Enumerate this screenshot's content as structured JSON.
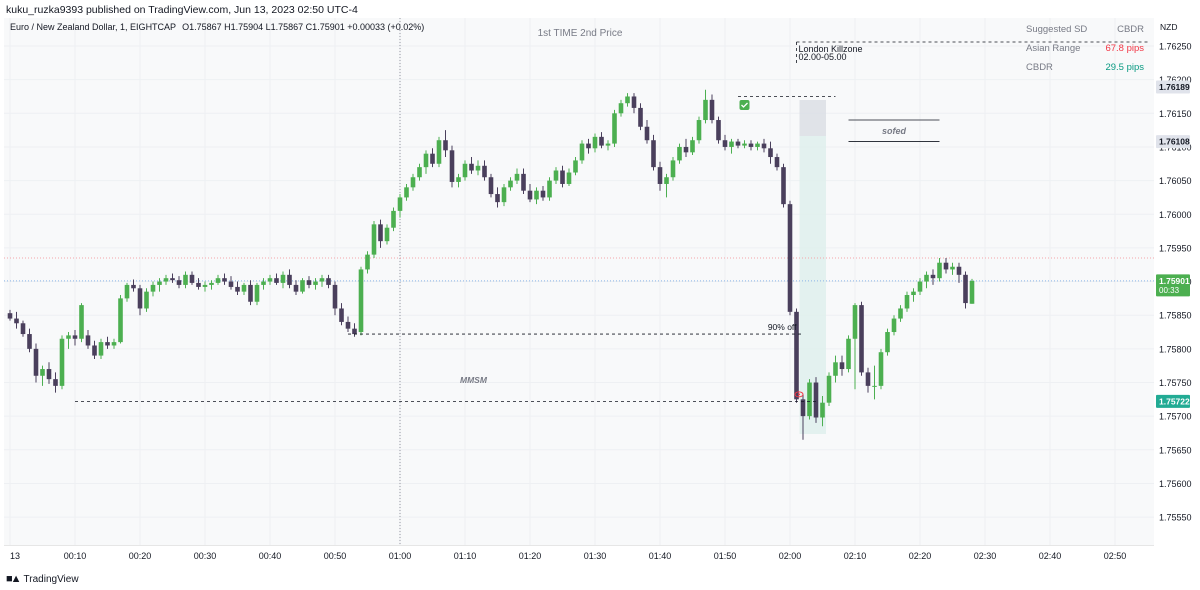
{
  "header": {
    "publisher": "kuku_ruzka9393 published on TradingView.com, Jun 13, 2023 02:50 UTC-4"
  },
  "legend": {
    "symbol": "Euro / New Zealand Dollar, 1, EIGHTCAP",
    "ohlc": "O1.75867  H1.75904  L1.75867  C1.75901  +0.00033 (+0.02%)"
  },
  "info_table": {
    "header_left": "Suggested SD",
    "header_right": "CBDR",
    "rows": [
      {
        "label": "Asian Range",
        "value": "67.8 pips",
        "color": "#f23645"
      },
      {
        "label": "CBDR",
        "value": "29.5 pips",
        "color": "#089981"
      }
    ]
  },
  "footer": {
    "brand": "TradingView"
  },
  "colors": {
    "up": "#4caf50",
    "down": "#4a3f5c",
    "accent_green": "#22ab94",
    "grid": "#eef0f3"
  },
  "chart_data": {
    "type": "candlestick",
    "symbol": "EURNZD",
    "interval": "1",
    "currency": "NZD",
    "ylim": [
      1.755,
      1.7625
    ],
    "y_ticks": [
      "1.76250",
      "1.76200",
      "1.76150",
      "1.76100",
      "1.76050",
      "1.76000",
      "1.75950",
      "1.75900",
      "1.75850",
      "1.75800",
      "1.75750",
      "1.75700",
      "1.75650",
      "1.75600",
      "1.75550"
    ],
    "x_ticks": [
      "13",
      "00:10",
      "00:20",
      "00:30",
      "00:40",
      "00:50",
      "01:00",
      "01:10",
      "01:20",
      "01:30",
      "01:40",
      "01:50",
      "02:00",
      "02:10",
      "02:20",
      "02:30",
      "02:40",
      "02:50"
    ],
    "price_labels": [
      {
        "value": 1.76189,
        "text": "1.76189",
        "bg": "#e0e3eb",
        "fg": "#131722"
      },
      {
        "value": 1.76108,
        "text": "1.76108",
        "bg": "#e0e3eb",
        "fg": "#131722"
      },
      {
        "value": 1.75901,
        "text": "1.75901",
        "sub": "00:33",
        "bg": "#4caf50",
        "fg": "#ffffff"
      },
      {
        "value": 1.75722,
        "text": "1.75722",
        "bg": "#22ab94",
        "fg": "#ffffff"
      }
    ],
    "annotations": {
      "title": "1st TIME 2nd Price",
      "killzone_name": "London Killzone",
      "killzone_time": "02.00-05.00",
      "sofed": "sofed",
      "off": "90% off",
      "mmsm": "MMSM"
    },
    "candles": [
      [
        1.75853,
        1.75858,
        1.75842,
        1.75845
      ],
      [
        1.75845,
        1.75855,
        1.7583,
        1.75838
      ],
      [
        1.75838,
        1.75842,
        1.75818,
        1.75822
      ],
      [
        1.75822,
        1.7583,
        1.75795,
        1.758
      ],
      [
        1.758,
        1.75808,
        1.7575,
        1.7576
      ],
      [
        1.7576,
        1.75775,
        1.75745,
        1.7577
      ],
      [
        1.7577,
        1.7578,
        1.75748,
        1.75755
      ],
      [
        1.75755,
        1.75765,
        1.75735,
        1.75745
      ],
      [
        1.75745,
        1.7582,
        1.7574,
        1.75815
      ],
      [
        1.75815,
        1.75825,
        1.758,
        1.7582
      ],
      [
        1.7582,
        1.75828,
        1.75805,
        1.75815
      ],
      [
        1.75815,
        1.75868,
        1.7581,
        1.75865
      ],
      [
        1.7582,
        1.75828,
        1.758,
        1.75805
      ],
      [
        1.75805,
        1.75812,
        1.75785,
        1.7579
      ],
      [
        1.7579,
        1.75815,
        1.75785,
        1.7581
      ],
      [
        1.7581,
        1.75818,
        1.758,
        1.75805
      ],
      [
        1.75805,
        1.75815,
        1.758,
        1.7581
      ],
      [
        1.7581,
        1.7588,
        1.75808,
        1.75875
      ],
      [
        1.75875,
        1.75898,
        1.7587,
        1.75895
      ],
      [
        1.75895,
        1.75903,
        1.75885,
        1.7589
      ],
      [
        1.7589,
        1.75895,
        1.7585,
        1.7586
      ],
      [
        1.7586,
        1.7589,
        1.75855,
        1.75885
      ],
      [
        1.75885,
        1.759,
        1.75878,
        1.75895
      ],
      [
        1.75895,
        1.75905,
        1.75885,
        1.759
      ],
      [
        1.759,
        1.7591,
        1.75895,
        1.75905
      ],
      [
        1.75905,
        1.75912,
        1.75898,
        1.75902
      ],
      [
        1.75902,
        1.75908,
        1.7589,
        1.75895
      ],
      [
        1.75895,
        1.75915,
        1.7589,
        1.7591
      ],
      [
        1.7591,
        1.75915,
        1.75895,
        1.75898
      ],
      [
        1.75898,
        1.75905,
        1.75888,
        1.75892
      ],
      [
        1.75892,
        1.759,
        1.75885,
        1.75895
      ],
      [
        1.75895,
        1.75902,
        1.75888,
        1.75898
      ],
      [
        1.75898,
        1.7591,
        1.75895,
        1.75905
      ],
      [
        1.75905,
        1.75912,
        1.75895,
        1.759
      ],
      [
        1.759,
        1.75908,
        1.75888,
        1.75892
      ],
      [
        1.75892,
        1.759,
        1.7588,
        1.75885
      ],
      [
        1.75885,
        1.75898,
        1.7588,
        1.75895
      ],
      [
        1.75895,
        1.75902,
        1.75865,
        1.7587
      ],
      [
        1.7587,
        1.75898,
        1.75865,
        1.75895
      ],
      [
        1.75895,
        1.75905,
        1.75888,
        1.759
      ],
      [
        1.759,
        1.7591,
        1.75895,
        1.75905
      ],
      [
        1.75905,
        1.75912,
        1.75895,
        1.75898
      ],
      [
        1.75898,
        1.75915,
        1.7589,
        1.7591
      ],
      [
        1.7591,
        1.75918,
        1.7589,
        1.75895
      ],
      [
        1.75895,
        1.75902,
        1.7588,
        1.75885
      ],
      [
        1.75885,
        1.75905,
        1.75882,
        1.75902
      ],
      [
        1.75902,
        1.75908,
        1.7589,
        1.75895
      ],
      [
        1.75895,
        1.75905,
        1.75888,
        1.759
      ],
      [
        1.759,
        1.7591,
        1.75892,
        1.75905
      ],
      [
        1.75905,
        1.7591,
        1.7589,
        1.75895
      ],
      [
        1.75895,
        1.759,
        1.7585,
        1.7586
      ],
      [
        1.7586,
        1.75868,
        1.75835,
        1.7584
      ],
      [
        1.7584,
        1.75848,
        1.75825,
        1.7583
      ],
      [
        1.7583,
        1.75838,
        1.75818,
        1.75822
      ],
      [
        1.75825,
        1.75922,
        1.7582,
        1.75918
      ],
      [
        1.75918,
        1.75945,
        1.75912,
        1.7594
      ],
      [
        1.7594,
        1.7599,
        1.75935,
        1.75985
      ],
      [
        1.75985,
        1.75992,
        1.7595,
        1.7596
      ],
      [
        1.7596,
        1.75985,
        1.75955,
        1.7598
      ],
      [
        1.7598,
        1.7601,
        1.75975,
        1.76005
      ],
      [
        1.76005,
        1.7603,
        1.75995,
        1.76025
      ],
      [
        1.76025,
        1.76045,
        1.7602,
        1.7604
      ],
      [
        1.7604,
        1.7606,
        1.76035,
        1.76055
      ],
      [
        1.76055,
        1.76075,
        1.7605,
        1.7607
      ],
      [
        1.7607,
        1.76095,
        1.7606,
        1.7609
      ],
      [
        1.7609,
        1.76098,
        1.7607,
        1.76075
      ],
      [
        1.76075,
        1.76115,
        1.7607,
        1.7611
      ],
      [
        1.7611,
        1.76125,
        1.76085,
        1.76095
      ],
      [
        1.76095,
        1.76102,
        1.7604,
        1.76048
      ],
      [
        1.76048,
        1.7606,
        1.7604,
        1.76055
      ],
      [
        1.76055,
        1.7608,
        1.7605,
        1.76075
      ],
      [
        1.76075,
        1.76085,
        1.7606,
        1.76065
      ],
      [
        1.76065,
        1.7608,
        1.76058,
        1.76072
      ],
      [
        1.76072,
        1.7608,
        1.7605,
        1.76055
      ],
      [
        1.76055,
        1.7606,
        1.76025,
        1.7603
      ],
      [
        1.7603,
        1.7604,
        1.7601,
        1.76018
      ],
      [
        1.76018,
        1.76045,
        1.76012,
        1.7604
      ],
      [
        1.7604,
        1.76055,
        1.76035,
        1.7605
      ],
      [
        1.7605,
        1.76068,
        1.76045,
        1.7606
      ],
      [
        1.7606,
        1.76068,
        1.7603,
        1.76035
      ],
      [
        1.76035,
        1.76045,
        1.76018,
        1.76022
      ],
      [
        1.76022,
        1.7604,
        1.76015,
        1.76035
      ],
      [
        1.76035,
        1.76042,
        1.7602,
        1.76025
      ],
      [
        1.76025,
        1.76055,
        1.7602,
        1.7605
      ],
      [
        1.7605,
        1.7607,
        1.76045,
        1.76065
      ],
      [
        1.76065,
        1.76072,
        1.7604,
        1.76045
      ],
      [
        1.76045,
        1.76068,
        1.76042,
        1.76062
      ],
      [
        1.76062,
        1.76085,
        1.76058,
        1.7608
      ],
      [
        1.7608,
        1.7611,
        1.76075,
        1.76105
      ],
      [
        1.76105,
        1.76112,
        1.7609,
        1.76098
      ],
      [
        1.76098,
        1.7612,
        1.76092,
        1.76115
      ],
      [
        1.76115,
        1.76122,
        1.76098,
        1.76102
      ],
      [
        1.76102,
        1.7611,
        1.76095,
        1.76105
      ],
      [
        1.76105,
        1.76155,
        1.761,
        1.7615
      ],
      [
        1.7615,
        1.7617,
        1.76145,
        1.76165
      ],
      [
        1.76165,
        1.7618,
        1.7616,
        1.76175
      ],
      [
        1.76175,
        1.7618,
        1.7615,
        1.76158
      ],
      [
        1.76158,
        1.76165,
        1.76125,
        1.7613
      ],
      [
        1.7613,
        1.7614,
        1.76105,
        1.7611
      ],
      [
        1.7611,
        1.76118,
        1.76065,
        1.7607
      ],
      [
        1.7607,
        1.76078,
        1.76035,
        1.76045
      ],
      [
        1.76045,
        1.7606,
        1.76025,
        1.76055
      ],
      [
        1.76055,
        1.76085,
        1.7605,
        1.7608
      ],
      [
        1.7608,
        1.76105,
        1.76075,
        1.761
      ],
      [
        1.761,
        1.76112,
        1.76085,
        1.76092
      ],
      [
        1.76092,
        1.76115,
        1.76088,
        1.7611
      ],
      [
        1.7611,
        1.76145,
        1.76105,
        1.7614
      ],
      [
        1.7614,
        1.76185,
        1.76135,
        1.7617
      ],
      [
        1.7617,
        1.76178,
        1.76135,
        1.7614
      ],
      [
        1.7614,
        1.76145,
        1.76105,
        1.7611
      ],
      [
        1.7611,
        1.76118,
        1.76095,
        1.761
      ],
      [
        1.761,
        1.76112,
        1.7609,
        1.76108
      ],
      [
        1.76108,
        1.76112,
        1.76098,
        1.76102
      ],
      [
        1.76102,
        1.7611,
        1.76098,
        1.76105
      ],
      [
        1.76105,
        1.7611,
        1.76095,
        1.761
      ],
      [
        1.761,
        1.76108,
        1.76095,
        1.76105
      ],
      [
        1.76105,
        1.76112,
        1.76092,
        1.76098
      ],
      [
        1.76098,
        1.76108,
        1.76075,
        1.76085
      ],
      [
        1.76085,
        1.7609,
        1.76065,
        1.7607
      ],
      [
        1.7607,
        1.76075,
        1.7601,
        1.76015
      ],
      [
        1.76015,
        1.7602,
        1.7585,
        1.75855
      ],
      [
        1.75855,
        1.7586,
        1.7572,
        1.75725
      ],
      [
        1.75725,
        1.75732,
        1.75665,
        1.757
      ],
      [
        1.757,
        1.75755,
        1.75695,
        1.7575
      ],
      [
        1.7575,
        1.75758,
        1.7569,
        1.75698
      ],
      [
        1.75698,
        1.7573,
        1.75685,
        1.7572
      ],
      [
        1.7572,
        1.75765,
        1.75715,
        1.7576
      ],
      [
        1.7576,
        1.7579,
        1.7575,
        1.7578
      ],
      [
        1.7578,
        1.7579,
        1.7576,
        1.7577
      ],
      [
        1.7577,
        1.7582,
        1.75765,
        1.75815
      ],
      [
        1.75815,
        1.75868,
        1.7574,
        1.75865
      ],
      [
        1.75865,
        1.7587,
        1.7576,
        1.75765
      ],
      [
        1.75765,
        1.75772,
        1.75735,
        1.75745
      ],
      [
        1.75745,
        1.75775,
        1.75725,
        1.75745
      ],
      [
        1.75745,
        1.758,
        1.7574,
        1.75795
      ],
      [
        1.75795,
        1.7583,
        1.7579,
        1.75825
      ],
      [
        1.75825,
        1.7585,
        1.7582,
        1.75845
      ],
      [
        1.75845,
        1.75865,
        1.7584,
        1.7586
      ],
      [
        1.7586,
        1.75885,
        1.75855,
        1.7588
      ],
      [
        1.7588,
        1.7589,
        1.7587,
        1.75885
      ],
      [
        1.75885,
        1.75905,
        1.7588,
        1.759
      ],
      [
        1.759,
        1.75915,
        1.7589,
        1.7591
      ],
      [
        1.7591,
        1.75918,
        1.75895,
        1.75905
      ],
      [
        1.75905,
        1.75935,
        1.759,
        1.75928
      ],
      [
        1.75928,
        1.75935,
        1.75912,
        1.75918
      ],
      [
        1.75918,
        1.75928,
        1.7591,
        1.75922
      ],
      [
        1.75922,
        1.75928,
        1.75898,
        1.7591
      ],
      [
        1.7591,
        1.75915,
        1.7586,
        1.75868
      ],
      [
        1.75867,
        1.75904,
        1.75867,
        1.75901
      ]
    ]
  }
}
